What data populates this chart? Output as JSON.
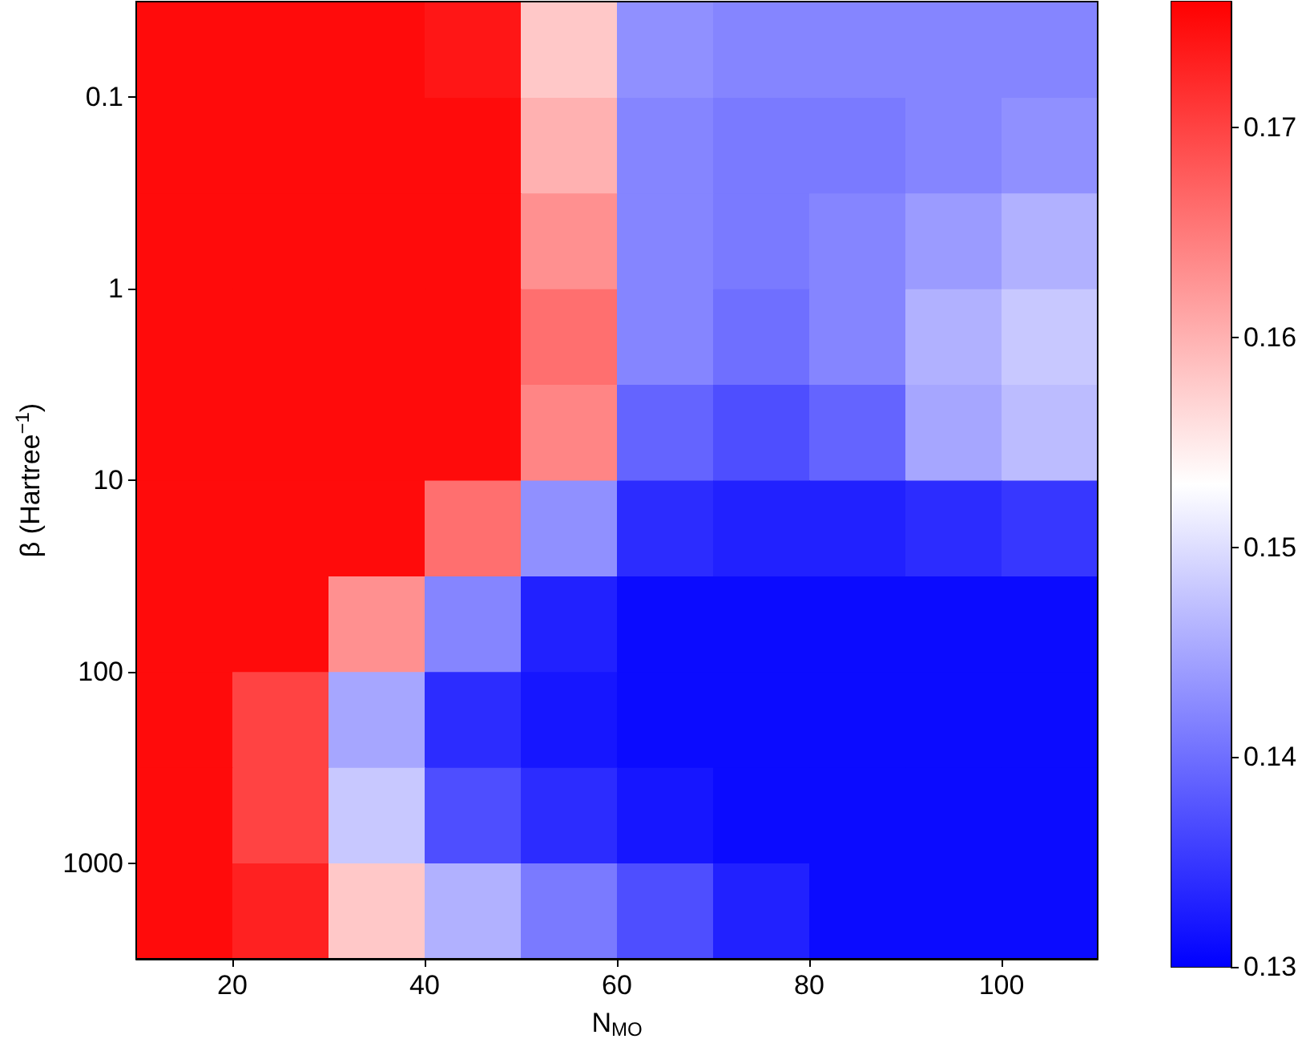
{
  "chart_data": {
    "type": "heatmap",
    "xlabel": "N$_{MO}$",
    "ylabel": "β (Hartree$^{−1}$)",
    "x": [
      15,
      25,
      35,
      45,
      55,
      65,
      75,
      85,
      95,
      105
    ],
    "y": [
      0.056,
      0.18,
      0.56,
      1.8,
      5.6,
      18,
      56,
      180,
      560,
      1800
    ],
    "xlim": [
      10,
      110
    ],
    "xticks": [
      20,
      40,
      60,
      80,
      100
    ],
    "ylim": [
      3160,
      0.0316
    ],
    "yticks": [
      0.1,
      1,
      10,
      100,
      1000
    ],
    "log": "y",
    "clim": [
      0.13,
      0.176
    ],
    "cticks": [
      0.13,
      0.14,
      0.15,
      0.16,
      0.17
    ],
    "cells": [
      [
        0.175,
        0.175,
        0.175,
        0.174,
        0.158,
        0.143,
        0.142,
        0.142,
        0.142,
        0.142
      ],
      [
        0.175,
        0.175,
        0.175,
        0.175,
        0.16,
        0.142,
        0.141,
        0.141,
        0.142,
        0.143
      ],
      [
        0.175,
        0.175,
        0.175,
        0.175,
        0.163,
        0.142,
        0.141,
        0.142,
        0.144,
        0.146
      ],
      [
        0.175,
        0.175,
        0.175,
        0.175,
        0.166,
        0.142,
        0.14,
        0.142,
        0.146,
        0.148
      ],
      [
        0.175,
        0.175,
        0.175,
        0.175,
        0.164,
        0.139,
        0.137,
        0.139,
        0.145,
        0.147
      ],
      [
        0.175,
        0.175,
        0.175,
        0.166,
        0.143,
        0.134,
        0.133,
        0.133,
        0.134,
        0.135
      ],
      [
        0.175,
        0.175,
        0.163,
        0.142,
        0.133,
        0.131,
        0.131,
        0.131,
        0.131,
        0.131
      ],
      [
        0.175,
        0.17,
        0.145,
        0.134,
        0.132,
        0.131,
        0.131,
        0.131,
        0.131,
        0.131
      ],
      [
        0.175,
        0.17,
        0.148,
        0.137,
        0.134,
        0.132,
        0.131,
        0.131,
        0.131,
        0.131
      ],
      [
        0.175,
        0.173,
        0.158,
        0.146,
        0.141,
        0.137,
        0.133,
        0.131,
        0.131,
        0.131
      ]
    ]
  }
}
